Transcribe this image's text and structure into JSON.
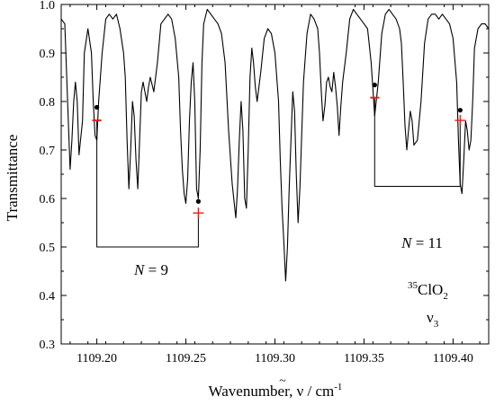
{
  "chart_data": {
    "type": "line",
    "xlabel_main": "Wavenumber, ",
    "xlabel_symbol": "ν",
    "xlabel_unit_base": " / cm",
    "xlabel_unit_exp": "-1",
    "ylabel": "Transmittance",
    "xlim": [
      1109.18,
      1109.42
    ],
    "ylim": [
      0.3,
      1.0
    ],
    "x_ticks": [
      1109.2,
      1109.25,
      1109.3,
      1109.35,
      1109.4
    ],
    "x_tick_labels": [
      "1109.20",
      "1109.25",
      "1109.30",
      "1109.35",
      "1109.40"
    ],
    "y_ticks": [
      0.3,
      0.4,
      0.5,
      0.6,
      0.7,
      0.8,
      0.9,
      1.0
    ],
    "y_tick_labels": [
      "0.3",
      "0.4",
      "0.5",
      "0.6",
      "0.7",
      "0.8",
      "0.9",
      "1.0"
    ],
    "grid": false,
    "series_color": "#000000",
    "marker_color_minus": "#e8201a",
    "marker_color_plus": "#e8201a",
    "series": [
      {
        "x": [
          1109.18,
          1109.182,
          1109.184,
          1109.185,
          1109.186,
          1109.187,
          1109.188,
          1109.189,
          1109.19,
          1109.192,
          1109.193,
          1109.195,
          1109.197,
          1109.198,
          1109.199,
          1109.2,
          1109.201,
          1109.203,
          1109.205,
          1109.207,
          1109.209,
          1109.211,
          1109.213,
          1109.215,
          1109.216,
          1109.217,
          1109.218,
          1109.219,
          1109.22,
          1109.221,
          1109.222,
          1109.223,
          1109.224,
          1109.225,
          1109.226,
          1109.227,
          1109.228,
          1109.229,
          1109.23,
          1109.232,
          1109.234,
          1109.236,
          1109.238,
          1109.24,
          1109.242,
          1109.244,
          1109.246,
          1109.247,
          1109.248,
          1109.249,
          1109.25,
          1109.251,
          1109.252,
          1109.253,
          1109.254,
          1109.255,
          1109.256,
          1109.257,
          1109.258,
          1109.259,
          1109.26,
          1109.262,
          1109.264,
          1109.266,
          1109.268,
          1109.27,
          1109.272,
          1109.274,
          1109.276,
          1109.278,
          1109.279,
          1109.28,
          1109.281,
          1109.282,
          1109.283,
          1109.284,
          1109.285,
          1109.286,
          1109.287,
          1109.288,
          1109.289,
          1109.29,
          1109.292,
          1109.294,
          1109.296,
          1109.298,
          1109.3,
          1109.302,
          1109.303,
          1109.304,
          1109.305,
          1109.306,
          1109.307,
          1109.308,
          1109.309,
          1109.31,
          1109.311,
          1109.312,
          1109.313,
          1109.314,
          1109.316,
          1109.318,
          1109.32,
          1109.322,
          1109.324,
          1109.325,
          1109.326,
          1109.327,
          1109.328,
          1109.329,
          1109.33,
          1109.331,
          1109.332,
          1109.333,
          1109.334,
          1109.335,
          1109.336,
          1109.337,
          1109.338,
          1109.34,
          1109.342,
          1109.344,
          1109.346,
          1109.348,
          1109.35,
          1109.352,
          1109.354,
          1109.356,
          1109.358,
          1109.36,
          1109.362,
          1109.364,
          1109.366,
          1109.368,
          1109.37,
          1109.371,
          1109.372,
          1109.373,
          1109.374,
          1109.375,
          1109.376,
          1109.377,
          1109.378,
          1109.38,
          1109.382,
          1109.384,
          1109.386,
          1109.388,
          1109.39,
          1109.392,
          1109.394,
          1109.396,
          1109.398,
          1109.4,
          1109.402,
          1109.403,
          1109.404,
          1109.405,
          1109.406,
          1109.407,
          1109.408,
          1109.409,
          1109.41,
          1109.411,
          1109.412,
          1109.414,
          1109.416,
          1109.418,
          1109.42
        ],
        "y": [
          0.97,
          0.96,
          0.76,
          0.66,
          0.72,
          0.8,
          0.84,
          0.8,
          0.69,
          0.76,
          0.9,
          0.95,
          0.9,
          0.8,
          0.73,
          0.72,
          0.8,
          0.9,
          0.97,
          0.98,
          0.97,
          0.98,
          0.95,
          0.9,
          0.85,
          0.72,
          0.62,
          0.7,
          0.8,
          0.77,
          0.68,
          0.62,
          0.72,
          0.82,
          0.84,
          0.82,
          0.8,
          0.83,
          0.85,
          0.82,
          0.88,
          0.96,
          0.97,
          0.98,
          0.97,
          0.93,
          0.85,
          0.74,
          0.66,
          0.61,
          0.59,
          0.64,
          0.76,
          0.84,
          0.88,
          0.8,
          0.62,
          0.6,
          0.7,
          0.88,
          0.96,
          0.99,
          0.98,
          0.97,
          0.96,
          0.94,
          0.88,
          0.74,
          0.63,
          0.56,
          0.62,
          0.72,
          0.8,
          0.74,
          0.6,
          0.58,
          0.7,
          0.85,
          0.91,
          0.88,
          0.83,
          0.8,
          0.86,
          0.93,
          0.95,
          0.94,
          0.9,
          0.8,
          0.68,
          0.58,
          0.51,
          0.43,
          0.5,
          0.62,
          0.72,
          0.82,
          0.78,
          0.65,
          0.55,
          0.62,
          0.84,
          0.94,
          0.98,
          0.97,
          0.95,
          0.9,
          0.82,
          0.76,
          0.79,
          0.84,
          0.85,
          0.83,
          0.82,
          0.86,
          0.83,
          0.79,
          0.73,
          0.79,
          0.84,
          0.9,
          0.97,
          0.99,
          0.98,
          0.97,
          0.96,
          0.95,
          0.88,
          0.77,
          0.84,
          0.94,
          0.98,
          0.99,
          0.98,
          0.97,
          0.95,
          0.92,
          0.84,
          0.75,
          0.7,
          0.74,
          0.78,
          0.76,
          0.71,
          0.72,
          0.8,
          0.92,
          0.97,
          0.98,
          0.98,
          0.97,
          0.98,
          0.97,
          0.96,
          0.93,
          0.84,
          0.72,
          0.63,
          0.61,
          0.68,
          0.76,
          0.74,
          0.7,
          0.72,
          0.8,
          0.91,
          0.95,
          0.96,
          0.96,
          0.95
        ]
      }
    ],
    "markers": [
      {
        "x": 1109.2,
        "y": 0.788,
        "type": "dot"
      },
      {
        "x": 1109.2,
        "y": 0.761,
        "type": "minus"
      },
      {
        "x": 1109.257,
        "y": 0.594,
        "type": "dot"
      },
      {
        "x": 1109.257,
        "y": 0.57,
        "type": "plus"
      },
      {
        "x": 1109.356,
        "y": 0.834,
        "type": "dot"
      },
      {
        "x": 1109.356,
        "y": 0.808,
        "type": "minus"
      },
      {
        "x": 1109.404,
        "y": 0.782,
        "type": "dot"
      },
      {
        "x": 1109.404,
        "y": 0.761,
        "type": "plus"
      }
    ],
    "brackets": [
      {
        "x1": 1109.2,
        "x2": 1109.257,
        "top_left": 0.761,
        "top_right": 0.57,
        "bottom": 0.5
      },
      {
        "x1": 1109.356,
        "x2": 1109.404,
        "top_left": 0.808,
        "top_right": 0.761,
        "bottom": 0.625
      }
    ],
    "annotations": {
      "n9_italic": "N",
      "n9_rest": " = 9",
      "n11_italic": "N",
      "n11_rest": " = 11",
      "molecule_mass": "35",
      "molecule_base": "ClO",
      "molecule_sub": "2",
      "mode_base": "ν",
      "mode_sub": "3"
    }
  }
}
